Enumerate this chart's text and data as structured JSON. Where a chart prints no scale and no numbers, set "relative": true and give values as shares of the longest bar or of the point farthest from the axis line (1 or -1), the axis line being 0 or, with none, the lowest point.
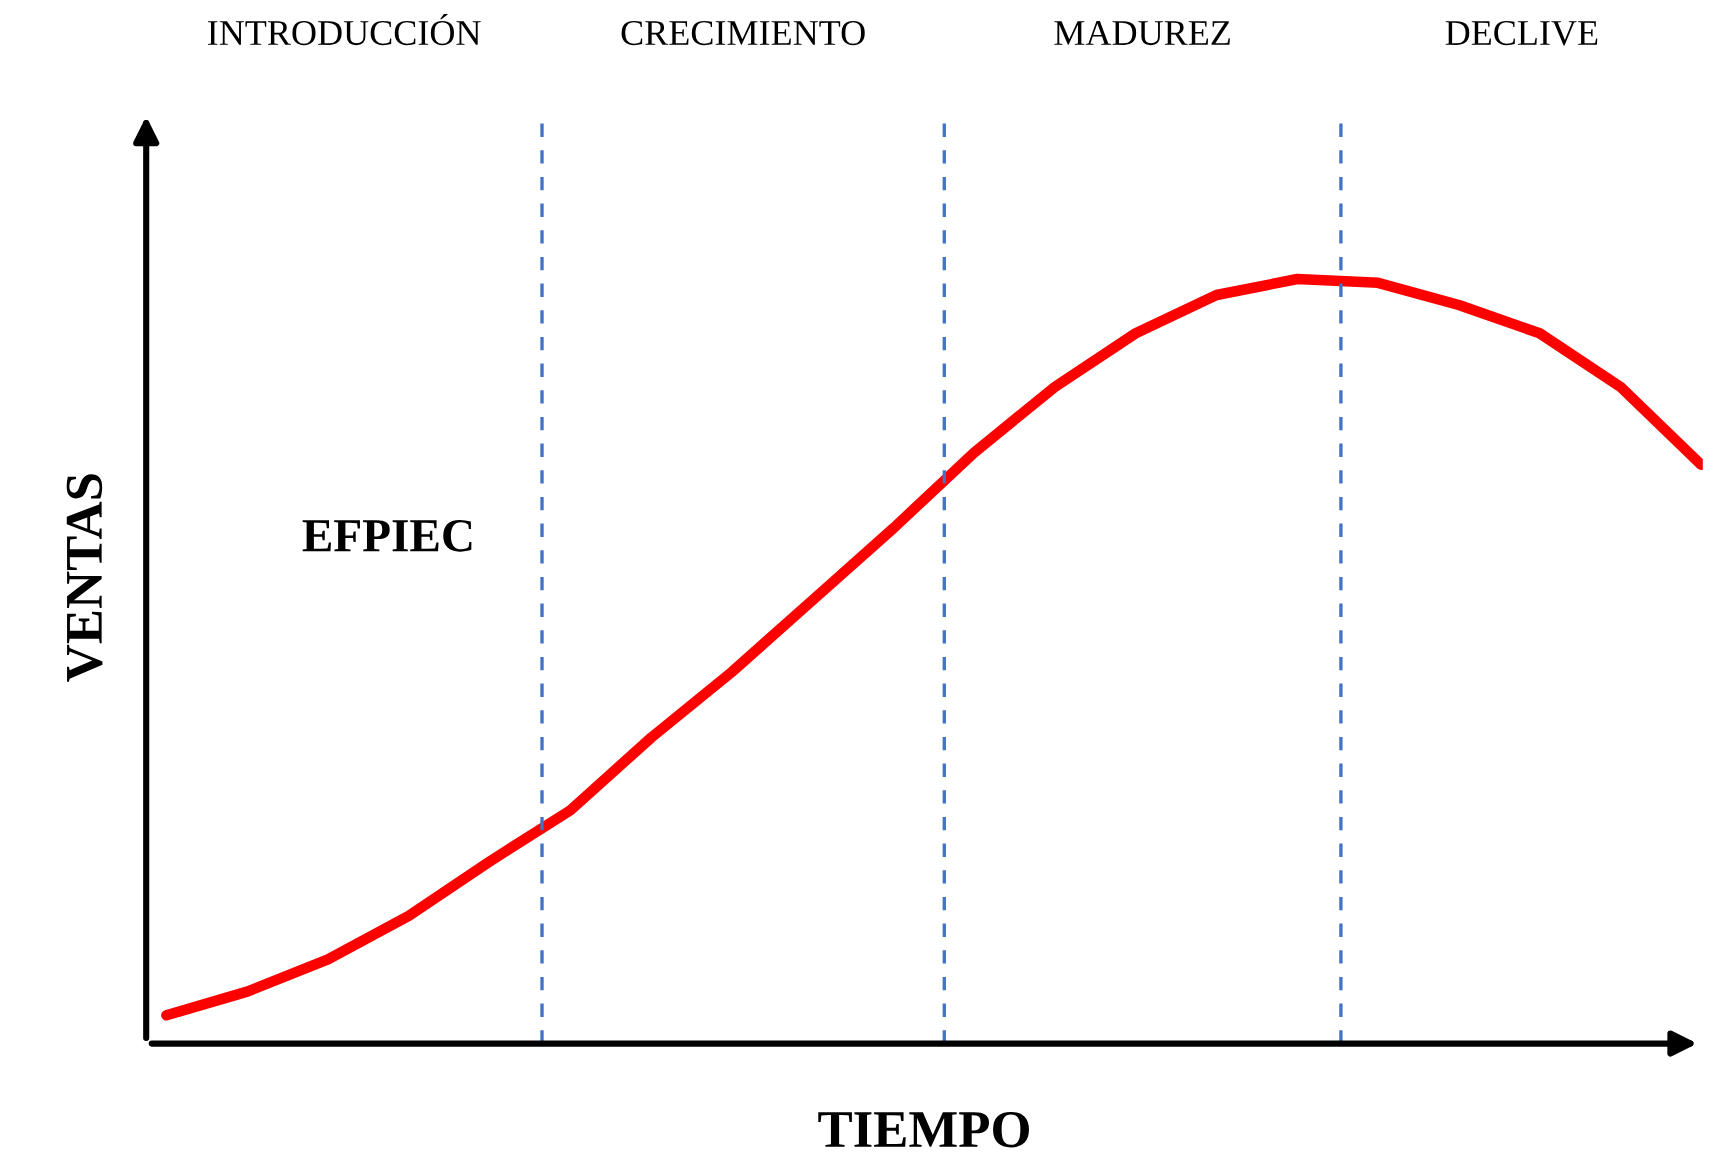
{
  "chart_data": {
    "type": "line",
    "relative": true,
    "xlabel": "TIEMPO",
    "ylabel": "VENTAS",
    "tick_labels": false,
    "marker": "none",
    "line_style": "solid",
    "categories": [
      null,
      null,
      null,
      null,
      null,
      null,
      null,
      null,
      null,
      null,
      null,
      null,
      null,
      null,
      null,
      null,
      null,
      null,
      null,
      null
    ],
    "series": [
      {
        "color": "#ff0000",
        "values": [
          0.037,
          0.068,
          0.11,
          0.167,
          0.238,
          0.305,
          0.4,
          0.486,
          0.58,
          0.674,
          0.773,
          0.859,
          0.929,
          0.979,
          1,
          0.995,
          0.966,
          0.929,
          0.859,
          0.757
        ]
      }
    ],
    "annotations": [
      "INTRODUCCIÓN",
      "CRECIMIENTO",
      "MADUREZ",
      "DECLIVE",
      "EFPIEC"
    ]
  }
}
